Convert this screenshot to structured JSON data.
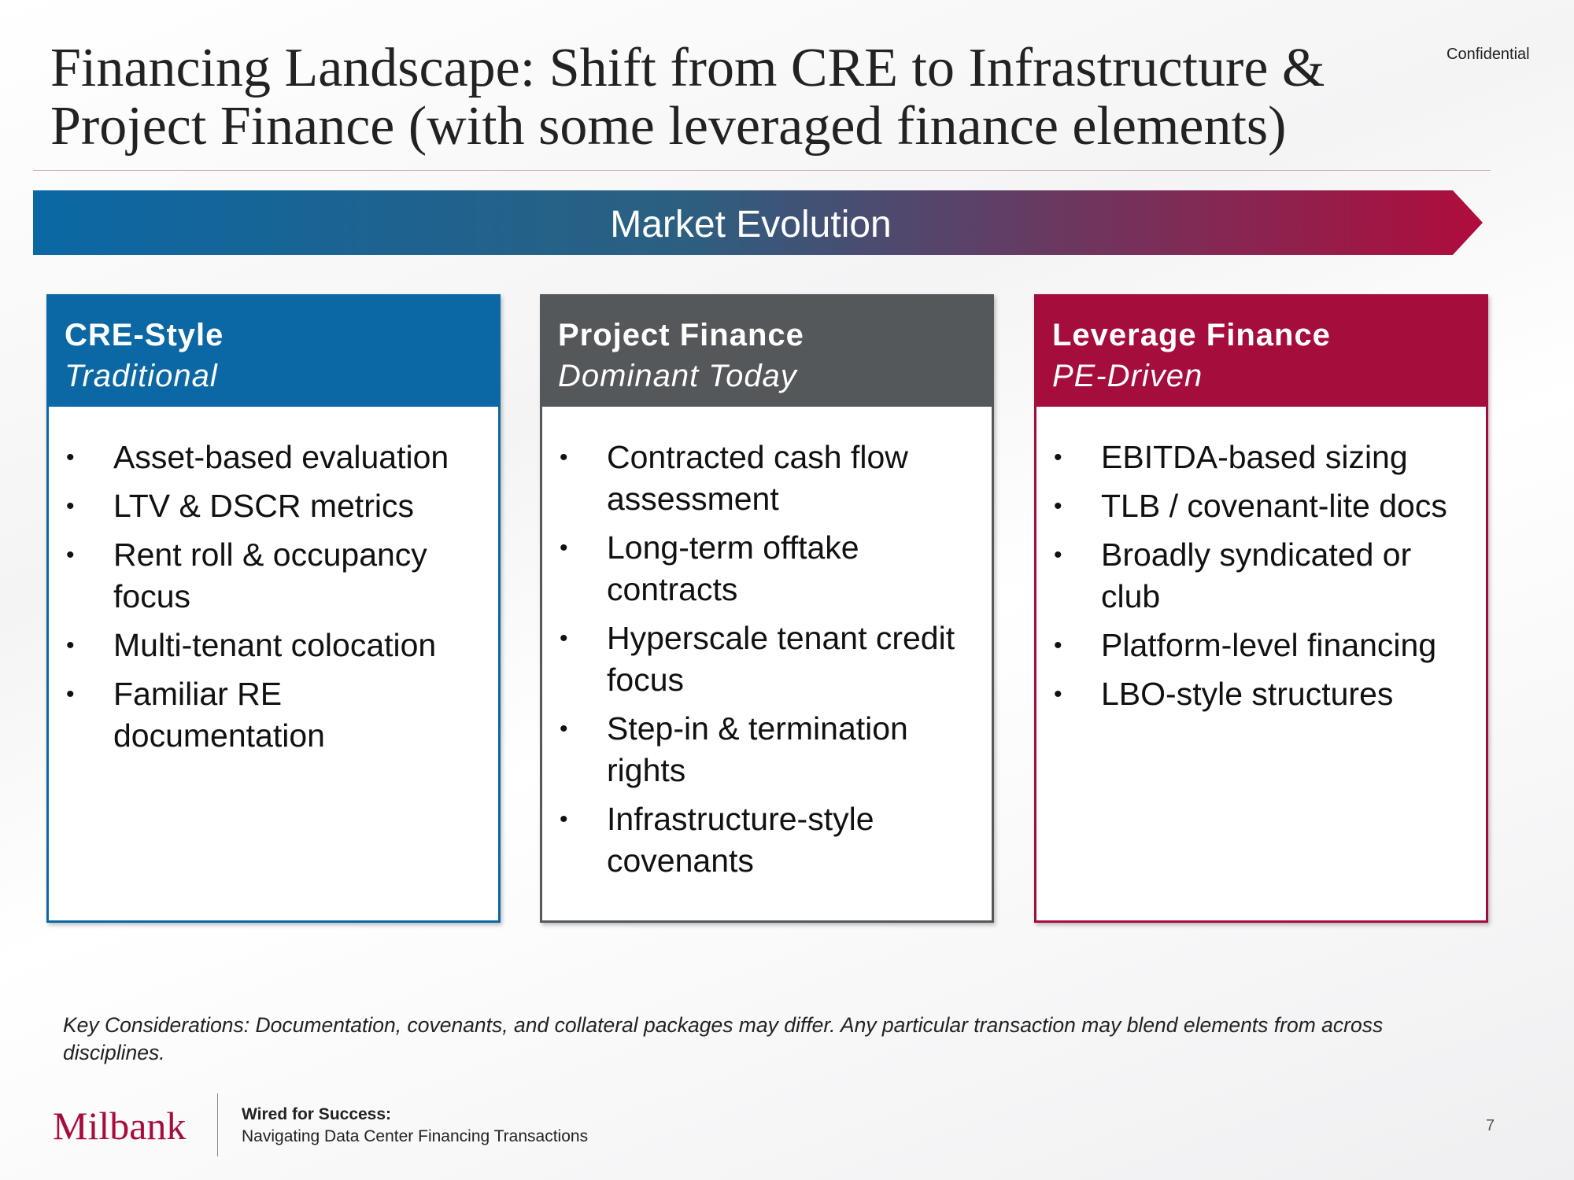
{
  "header": {
    "title_lines": [
      "Financing Landscape: Shift from CRE to Infrastructure &",
      "Project Finance (with some leveraged finance elements)"
    ],
    "confidential": "Confidential"
  },
  "banner": "Market Evolution",
  "columns": [
    {
      "title": "CRE-Style",
      "subtitle": "Traditional",
      "color": "#0b68a4",
      "items": [
        "Asset-based evaluation",
        "LTV & DSCR metrics",
        "Rent roll & occupancy focus",
        "Multi-tenant colocation",
        "Familiar RE documentation"
      ]
    },
    {
      "title": "Project Finance",
      "subtitle": "Dominant Today",
      "color": "#55585b",
      "items": [
        "Contracted cash flow assessment",
        "Long-term offtake contracts",
        "Hyperscale tenant credit focus",
        "Step-in & termination rights",
        "Infrastructure-style covenants"
      ]
    },
    {
      "title": "Leverage Finance",
      "subtitle": "PE-Driven",
      "color": "#a50d3d",
      "items": [
        "EBITDA-based sizing",
        "TLB / covenant-lite docs",
        "Broadly syndicated or club",
        "Platform-level financing",
        "LBO-style structures"
      ]
    }
  ],
  "footnote": "Key Considerations: Documentation, covenants, and collateral packages may differ.  Any particular transaction may blend elements from across disciplines.",
  "footer": {
    "logo": "Milbank",
    "title": "Wired for Success:",
    "subtitle": "Navigating Data Center Financing Transactions",
    "page": "7"
  }
}
